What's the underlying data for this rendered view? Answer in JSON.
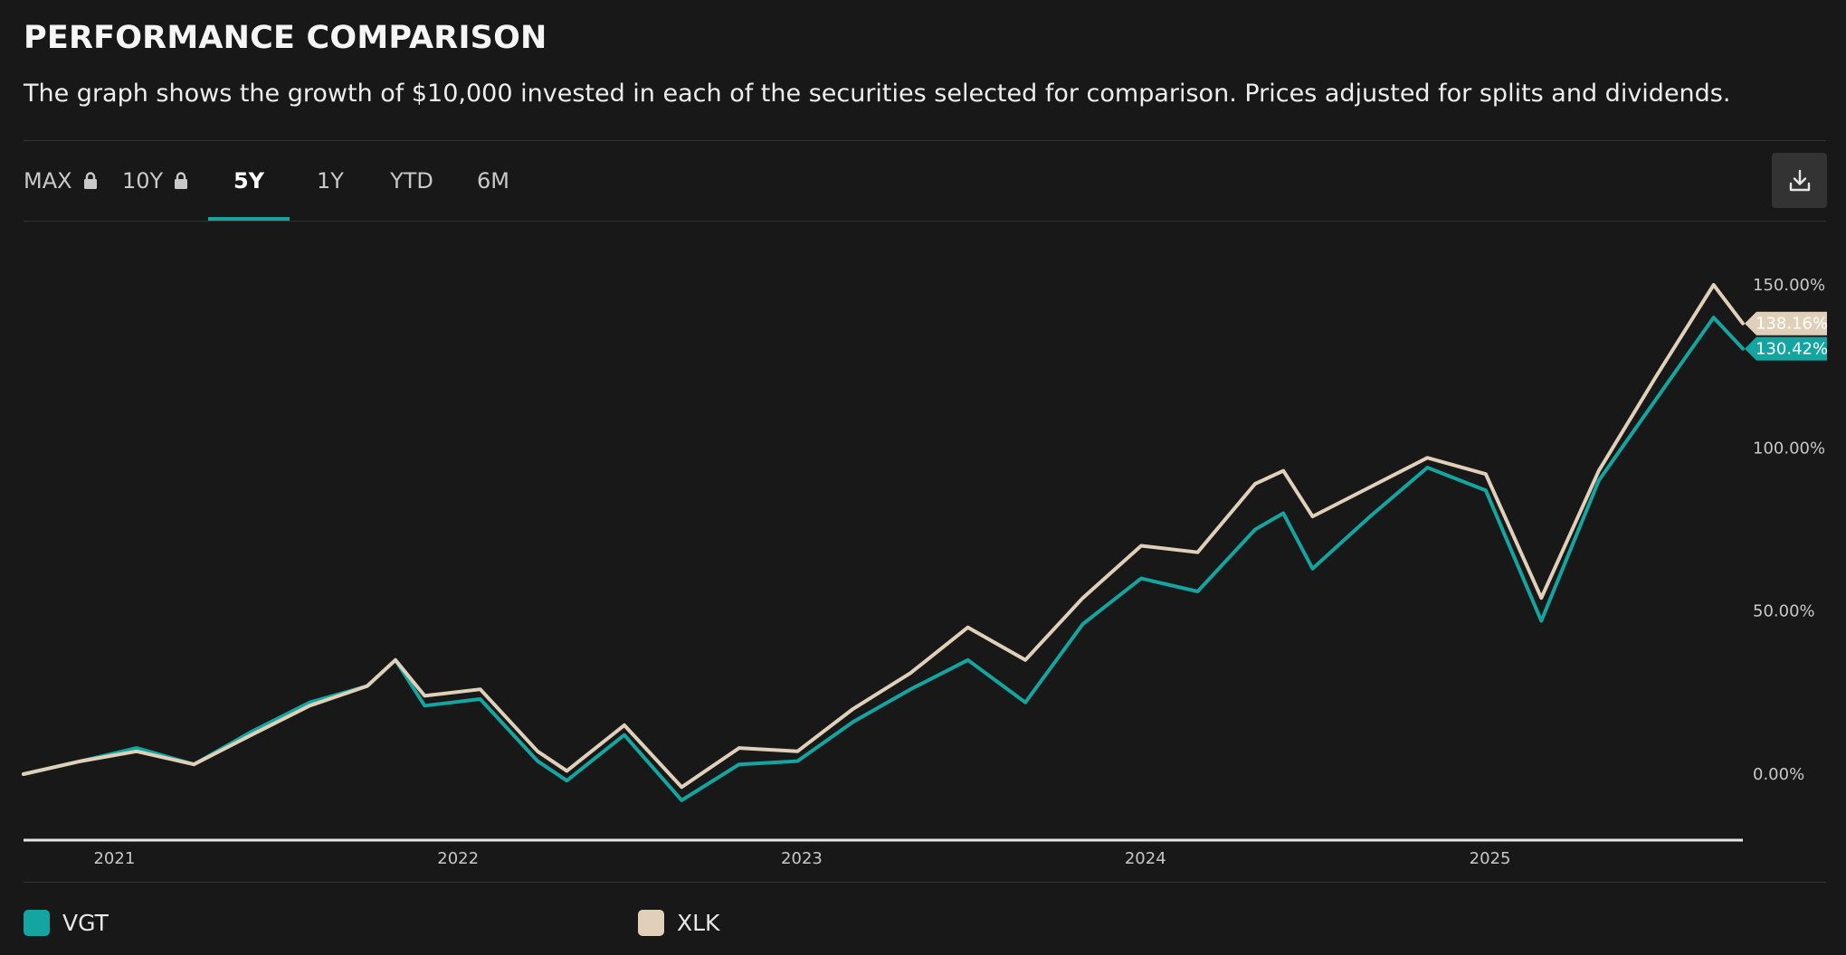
{
  "header": {
    "title": "PERFORMANCE COMPARISON",
    "subtitle": "The graph shows the growth of $10,000 invested in each of the securities selected for comparison. Prices adjusted for splits and dividends."
  },
  "tabs": [
    {
      "label": "MAX",
      "locked": true,
      "active": false
    },
    {
      "label": "10Y",
      "locked": true,
      "active": false
    },
    {
      "label": "5Y",
      "locked": false,
      "active": true
    },
    {
      "label": "1Y",
      "locked": false,
      "active": false
    },
    {
      "label": "YTD",
      "locked": false,
      "active": false
    },
    {
      "label": "6M",
      "locked": false,
      "active": false
    }
  ],
  "toolbar": {
    "download_icon": "download-icon"
  },
  "colors": {
    "VGT": "#14a5a0",
    "XLK": "#e0d0b9",
    "background": "#181818"
  },
  "legend": [
    {
      "name": "VGT",
      "color": "#14a5a0"
    },
    {
      "name": "XLK",
      "color": "#e0d0b9"
    }
  ],
  "chart_data": {
    "type": "line",
    "title": "",
    "xlabel": "",
    "ylabel": "",
    "x_ticks": [
      "2021",
      "2022",
      "2023",
      "2024",
      "2025"
    ],
    "y_ticks": [
      "0.00%",
      "50.00%",
      "100.00%",
      "150.00%"
    ],
    "ylim": [
      -20,
      165
    ],
    "grid": false,
    "end_labels": [
      "138.16%",
      "130.42%"
    ],
    "x": [
      "2020-11",
      "2021-01",
      "2021-03",
      "2021-05",
      "2021-07",
      "2021-09",
      "2021-11",
      "2021-12",
      "2022-01",
      "2022-03",
      "2022-05",
      "2022-06",
      "2022-08",
      "2022-10",
      "2022-12",
      "2023-02",
      "2023-04",
      "2023-06",
      "2023-08",
      "2023-10",
      "2023-12",
      "2024-02",
      "2024-04",
      "2024-06",
      "2024-07",
      "2024-08",
      "2024-10",
      "2024-12",
      "2025-02",
      "2025-04",
      "2025-06",
      "2025-08",
      "2025-10",
      "2025-11"
    ],
    "series": [
      {
        "name": "VGT",
        "values": [
          0,
          4,
          8,
          3,
          13,
          22,
          27,
          35,
          21,
          23,
          4,
          -2,
          12,
          -8,
          3,
          4,
          16,
          26,
          35,
          22,
          46,
          60,
          56,
          75,
          80,
          63,
          79,
          94,
          87,
          47,
          90,
          115,
          140,
          130.42
        ]
      },
      {
        "name": "XLK",
        "values": [
          0,
          4,
          7,
          3,
          12,
          21,
          27,
          35,
          24,
          26,
          7,
          1,
          15,
          -4,
          8,
          7,
          20,
          31,
          45,
          35,
          54,
          70,
          68,
          89,
          93,
          79,
          88,
          97,
          92,
          54,
          93,
          122,
          150,
          138.16
        ]
      }
    ]
  }
}
